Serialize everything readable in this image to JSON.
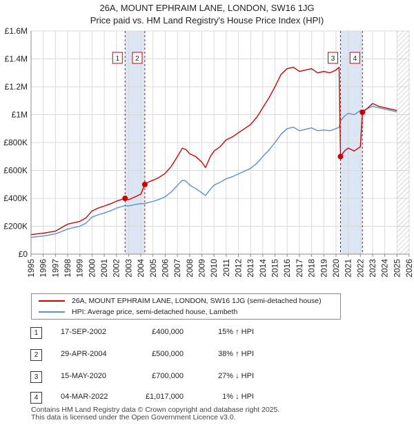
{
  "header": {
    "title": "26A, MOUNT EPHRAIM LANE, LONDON, SW16 1JG",
    "subtitle": "Price paid vs. HM Land Registry's House Price Index (HPI)"
  },
  "colors": {
    "price_line": "#cc0000",
    "hpi_line": "#5b8fc7",
    "band_fill": "#dde6f5",
    "marker_border": "#cc0000",
    "grid": "#d9d9d9"
  },
  "chart_data": {
    "type": "line",
    "title": "26A, MOUNT EPHRAIM LANE, LONDON, SW16 1JG",
    "xlabel": "",
    "ylabel": "",
    "xlim": [
      1995,
      2026
    ],
    "ylim": [
      0,
      1600000
    ],
    "grid": true,
    "y_ticks": [
      {
        "value": 0,
        "label": "£0"
      },
      {
        "value": 200000,
        "label": "£200K"
      },
      {
        "value": 400000,
        "label": "£400K"
      },
      {
        "value": 600000,
        "label": "£600K"
      },
      {
        "value": 800000,
        "label": "£800K"
      },
      {
        "value": 1000000,
        "label": "£1M"
      },
      {
        "value": 1200000,
        "label": "£1.2M"
      },
      {
        "value": 1400000,
        "label": "£1.4M"
      },
      {
        "value": 1600000,
        "label": "£1.6M"
      }
    ],
    "x_ticks": [
      "1995",
      "1996",
      "1997",
      "1998",
      "1999",
      "2000",
      "2001",
      "2002",
      "2003",
      "2004",
      "2005",
      "2006",
      "2007",
      "2008",
      "2009",
      "2010",
      "2011",
      "2012",
      "2013",
      "2014",
      "2015",
      "2016",
      "2017",
      "2018",
      "2019",
      "2020",
      "2021",
      "2022",
      "2023",
      "2024",
      "2025",
      "2026"
    ],
    "series": [
      {
        "name": "26A, MOUNT EPHRAIM LANE, LONDON, SW16 1JG (semi-detached house)",
        "x": [
          1995.0,
          1996.0,
          1997.0,
          1997.5,
          1998.0,
          1998.5,
          1999.0,
          1999.5,
          2000.0,
          2000.5,
          2001.0,
          2001.5,
          2002.0,
          2002.71,
          2003.0,
          2003.5,
          2004.0,
          2004.33,
          2004.7,
          2005.0,
          2005.5,
          2006.0,
          2006.5,
          2007.0,
          2007.4,
          2007.7,
          2008.0,
          2008.5,
          2009.0,
          2009.3,
          2009.7,
          2010.0,
          2010.5,
          2011.0,
          2011.5,
          2012.0,
          2012.5,
          2013.0,
          2013.5,
          2014.0,
          2014.5,
          2015.0,
          2015.5,
          2016.0,
          2016.5,
          2017.0,
          2017.5,
          2018.0,
          2018.5,
          2019.0,
          2019.5,
          2020.0,
          2020.25,
          2020.37,
          2020.7,
          2021.0,
          2021.5,
          2022.0,
          2022.17,
          2022.5,
          2023.0,
          2023.5,
          2024.0,
          2024.5,
          2025.0
        ],
        "values": [
          140000,
          150000,
          165000,
          190000,
          215000,
          225000,
          235000,
          260000,
          310000,
          330000,
          345000,
          360000,
          380000,
          400000,
          390000,
          410000,
          430000,
          500000,
          520000,
          530000,
          550000,
          580000,
          630000,
          700000,
          760000,
          750000,
          720000,
          700000,
          660000,
          620000,
          700000,
          740000,
          770000,
          820000,
          840000,
          870000,
          900000,
          930000,
          980000,
          1050000,
          1120000,
          1200000,
          1290000,
          1330000,
          1340000,
          1310000,
          1320000,
          1330000,
          1300000,
          1310000,
          1300000,
          1320000,
          1340000,
          700000,
          740000,
          760000,
          740000,
          770000,
          1017000,
          1040000,
          1080000,
          1060000,
          1050000,
          1040000,
          1030000
        ]
      },
      {
        "name": "HPI: Average price, semi-detached house, Lambeth",
        "x": [
          1995.0,
          1996.0,
          1997.0,
          1997.5,
          1998.0,
          1998.5,
          1999.0,
          1999.5,
          2000.0,
          2000.5,
          2001.0,
          2001.5,
          2002.0,
          2002.71,
          2003.0,
          2003.5,
          2004.0,
          2004.33,
          2004.7,
          2005.0,
          2005.5,
          2006.0,
          2006.5,
          2007.0,
          2007.4,
          2007.7,
          2008.0,
          2008.5,
          2009.0,
          2009.3,
          2009.7,
          2010.0,
          2010.5,
          2011.0,
          2011.5,
          2012.0,
          2012.5,
          2013.0,
          2013.5,
          2014.0,
          2014.5,
          2015.0,
          2015.5,
          2016.0,
          2016.5,
          2017.0,
          2017.5,
          2018.0,
          2018.5,
          2019.0,
          2019.5,
          2020.0,
          2020.25,
          2020.37,
          2020.7,
          2021.0,
          2021.5,
          2022.0,
          2022.17,
          2022.5,
          2023.0,
          2023.5,
          2024.0,
          2024.5,
          2025.0
        ],
        "values": [
          120000,
          130000,
          145000,
          162000,
          180000,
          190000,
          200000,
          222000,
          265000,
          282000,
          295000,
          310000,
          330000,
          348000,
          345000,
          355000,
          362000,
          362000,
          372000,
          378000,
          392000,
          412000,
          446000,
          493000,
          530000,
          525000,
          495000,
          470000,
          440000,
          420000,
          465000,
          495000,
          515000,
          540000,
          555000,
          575000,
          595000,
          615000,
          650000,
          700000,
          745000,
          800000,
          860000,
          900000,
          910000,
          885000,
          895000,
          905000,
          885000,
          890000,
          885000,
          900000,
          910000,
          955000,
          990000,
          1010000,
          1000000,
          1030000,
          1027000,
          1040000,
          1060000,
          1050000,
          1040000,
          1030000,
          1020000
        ]
      }
    ],
    "transactions": [
      {
        "label": "1",
        "date": "17-SEP-2002",
        "x": 2002.71,
        "price": "£400,000",
        "value": 400000,
        "hpi": "15% ↑ HPI"
      },
      {
        "label": "2",
        "date": "29-APR-2004",
        "x": 2004.33,
        "price": "£500,000",
        "value": 500000,
        "hpi": "38% ↑ HPI"
      },
      {
        "label": "3",
        "date": "15-MAY-2020",
        "x": 2020.37,
        "price": "£700,000",
        "value": 700000,
        "hpi": "27% ↓ HPI"
      },
      {
        "label": "4",
        "date": "04-MAR-2022",
        "x": 2022.17,
        "price": "£1,017,000",
        "value": 1017000,
        "hpi": "1% ↓ HPI"
      }
    ],
    "shaded_bands": [
      [
        2002.71,
        2004.33
      ],
      [
        2020.37,
        2022.17
      ]
    ],
    "hatched_from": 2025.0
  },
  "legend": {
    "price_label": "26A, MOUNT EPHRAIM LANE, LONDON, SW16 1JG (semi-detached house)",
    "hpi_label": "HPI: Average price, semi-detached house, Lambeth"
  },
  "footer": {
    "line1": "Contains HM Land Registry data © Crown copyright and database right 2025.",
    "line2": "This data is licensed under the Open Government Licence v3.0."
  }
}
